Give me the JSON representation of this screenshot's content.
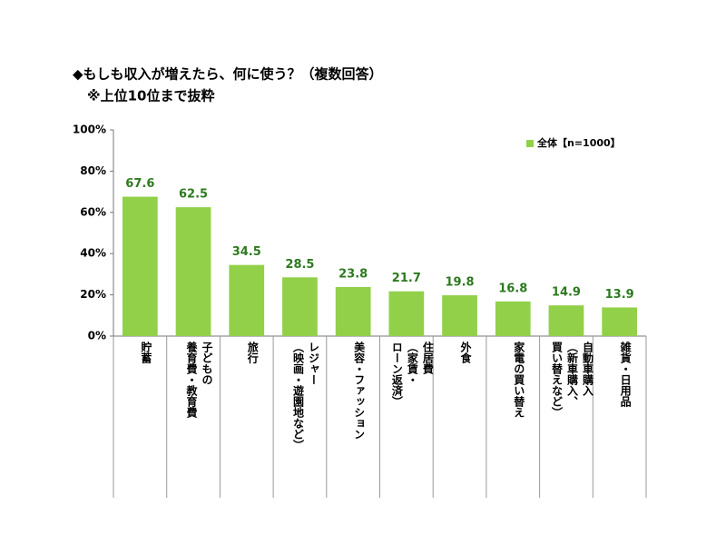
{
  "chart_data": {
    "type": "bar",
    "title": "◆もしも収入が増えたら、何に使う？（複数回答）",
    "subtitle": "※上位10位まで抜粋",
    "categories": [
      "貯蓄",
      "子どもの\n養育費・教育費",
      "旅行",
      "レジャー\n（映画・遊園地など）",
      "美容・ファッション",
      "住居費\n（家賃・\nローン返済）",
      "外食",
      "家電の買い替え",
      "自動車購入\n（新車購入、\n買い替えなど）",
      "雑貨・日用品"
    ],
    "series": [
      {
        "name": "全体【n=1000】",
        "color": "#92d04a",
        "values": [
          67.6,
          62.5,
          34.5,
          28.5,
          23.8,
          21.7,
          19.8,
          16.8,
          14.9,
          13.9
        ]
      }
    ],
    "value_label_color": "#2d7a1f",
    "ylim": [
      0,
      100
    ],
    "yticks": [
      {
        "value": 0,
        "label": "0%"
      },
      {
        "value": 20,
        "label": "20%"
      },
      {
        "value": 40,
        "label": "40%"
      },
      {
        "value": 60,
        "label": "60%"
      },
      {
        "value": 80,
        "label": "80%"
      },
      {
        "value": 100,
        "label": "100%"
      }
    ],
    "grid": false,
    "legend": "upper right"
  }
}
